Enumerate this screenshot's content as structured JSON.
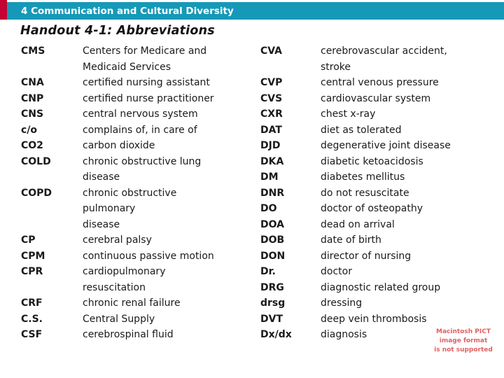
{
  "header": {
    "bar_label": "4 Communication and Cultural Diversity",
    "bar_color": "#1699B8",
    "accent_color": "#C40233"
  },
  "title": "Handout 4-1: Abbreviations",
  "columns": [
    {
      "entries": [
        {
          "abbr": "CMS",
          "definition_lines": [
            "Centers for Medicare and",
            "Medicaid Services"
          ]
        },
        {
          "abbr": "CNA",
          "definition_lines": [
            "certified nursing assistant"
          ]
        },
        {
          "abbr": "CNP",
          "definition_lines": [
            "certified nurse practitioner"
          ]
        },
        {
          "abbr": "CNS",
          "definition_lines": [
            "central nervous system"
          ]
        },
        {
          "abbr": "c/o",
          "definition_lines": [
            "complains of, in care of"
          ]
        },
        {
          "abbr": "CO2",
          "definition_lines": [
            "carbon dioxide"
          ]
        },
        {
          "abbr": "COLD",
          "definition_lines": [
            "chronic obstructive lung",
            "disease"
          ]
        },
        {
          "abbr": "COPD",
          "definition_lines": [
            "chronic obstructive",
            "pulmonary",
            "disease"
          ]
        },
        {
          "abbr": "CP",
          "definition_lines": [
            "cerebral palsy"
          ]
        },
        {
          "abbr": "CPM",
          "definition_lines": [
            "continuous passive motion"
          ]
        },
        {
          "abbr": "CPR",
          "definition_lines": [
            "cardiopulmonary",
            "resuscitation"
          ]
        },
        {
          "abbr": "CRF",
          "definition_lines": [
            "chronic renal failure"
          ]
        },
        {
          "abbr": "C.S.",
          "definition_lines": [
            "Central Supply"
          ]
        },
        {
          "abbr": "CSF",
          "definition_lines": [
            "cerebrospinal fluid"
          ]
        }
      ]
    },
    {
      "entries": [
        {
          "abbr": "CVA",
          "definition_lines": [
            "cerebrovascular accident,",
            "stroke"
          ]
        },
        {
          "abbr": "CVP",
          "definition_lines": [
            "central venous pressure"
          ]
        },
        {
          "abbr": "CVS",
          "definition_lines": [
            "cardiovascular system"
          ]
        },
        {
          "abbr": "CXR",
          "definition_lines": [
            "chest x-ray"
          ]
        },
        {
          "abbr": "DAT",
          "definition_lines": [
            "diet as tolerated"
          ]
        },
        {
          "abbr": "DJD",
          "definition_lines": [
            "degenerative joint disease"
          ]
        },
        {
          "abbr": "DKA",
          "definition_lines": [
            "diabetic ketoacidosis"
          ]
        },
        {
          "abbr": "DM",
          "definition_lines": [
            "diabetes mellitus"
          ]
        },
        {
          "abbr": "DNR",
          "definition_lines": [
            "do not resuscitate"
          ]
        },
        {
          "abbr": "DO",
          "definition_lines": [
            "doctor of osteopathy"
          ]
        },
        {
          "abbr": "DOA",
          "definition_lines": [
            "dead on arrival"
          ]
        },
        {
          "abbr": "DOB",
          "definition_lines": [
            "date of birth"
          ]
        },
        {
          "abbr": "DON",
          "definition_lines": [
            "director of nursing"
          ]
        },
        {
          "abbr": "Dr.",
          "definition_lines": [
            "doctor"
          ]
        },
        {
          "abbr": "DRG",
          "definition_lines": [
            "diagnostic related group"
          ]
        },
        {
          "abbr": "drsg",
          "definition_lines": [
            "dressing"
          ]
        },
        {
          "abbr": "DVT",
          "definition_lines": [
            "deep vein thrombosis"
          ]
        },
        {
          "abbr": "Dx/dx",
          "definition_lines": [
            "diagnosis"
          ]
        }
      ]
    }
  ],
  "pict_notice": {
    "lines": [
      "Macintosh PICT",
      "image format",
      "is not supported"
    ],
    "color": "#E26060"
  }
}
